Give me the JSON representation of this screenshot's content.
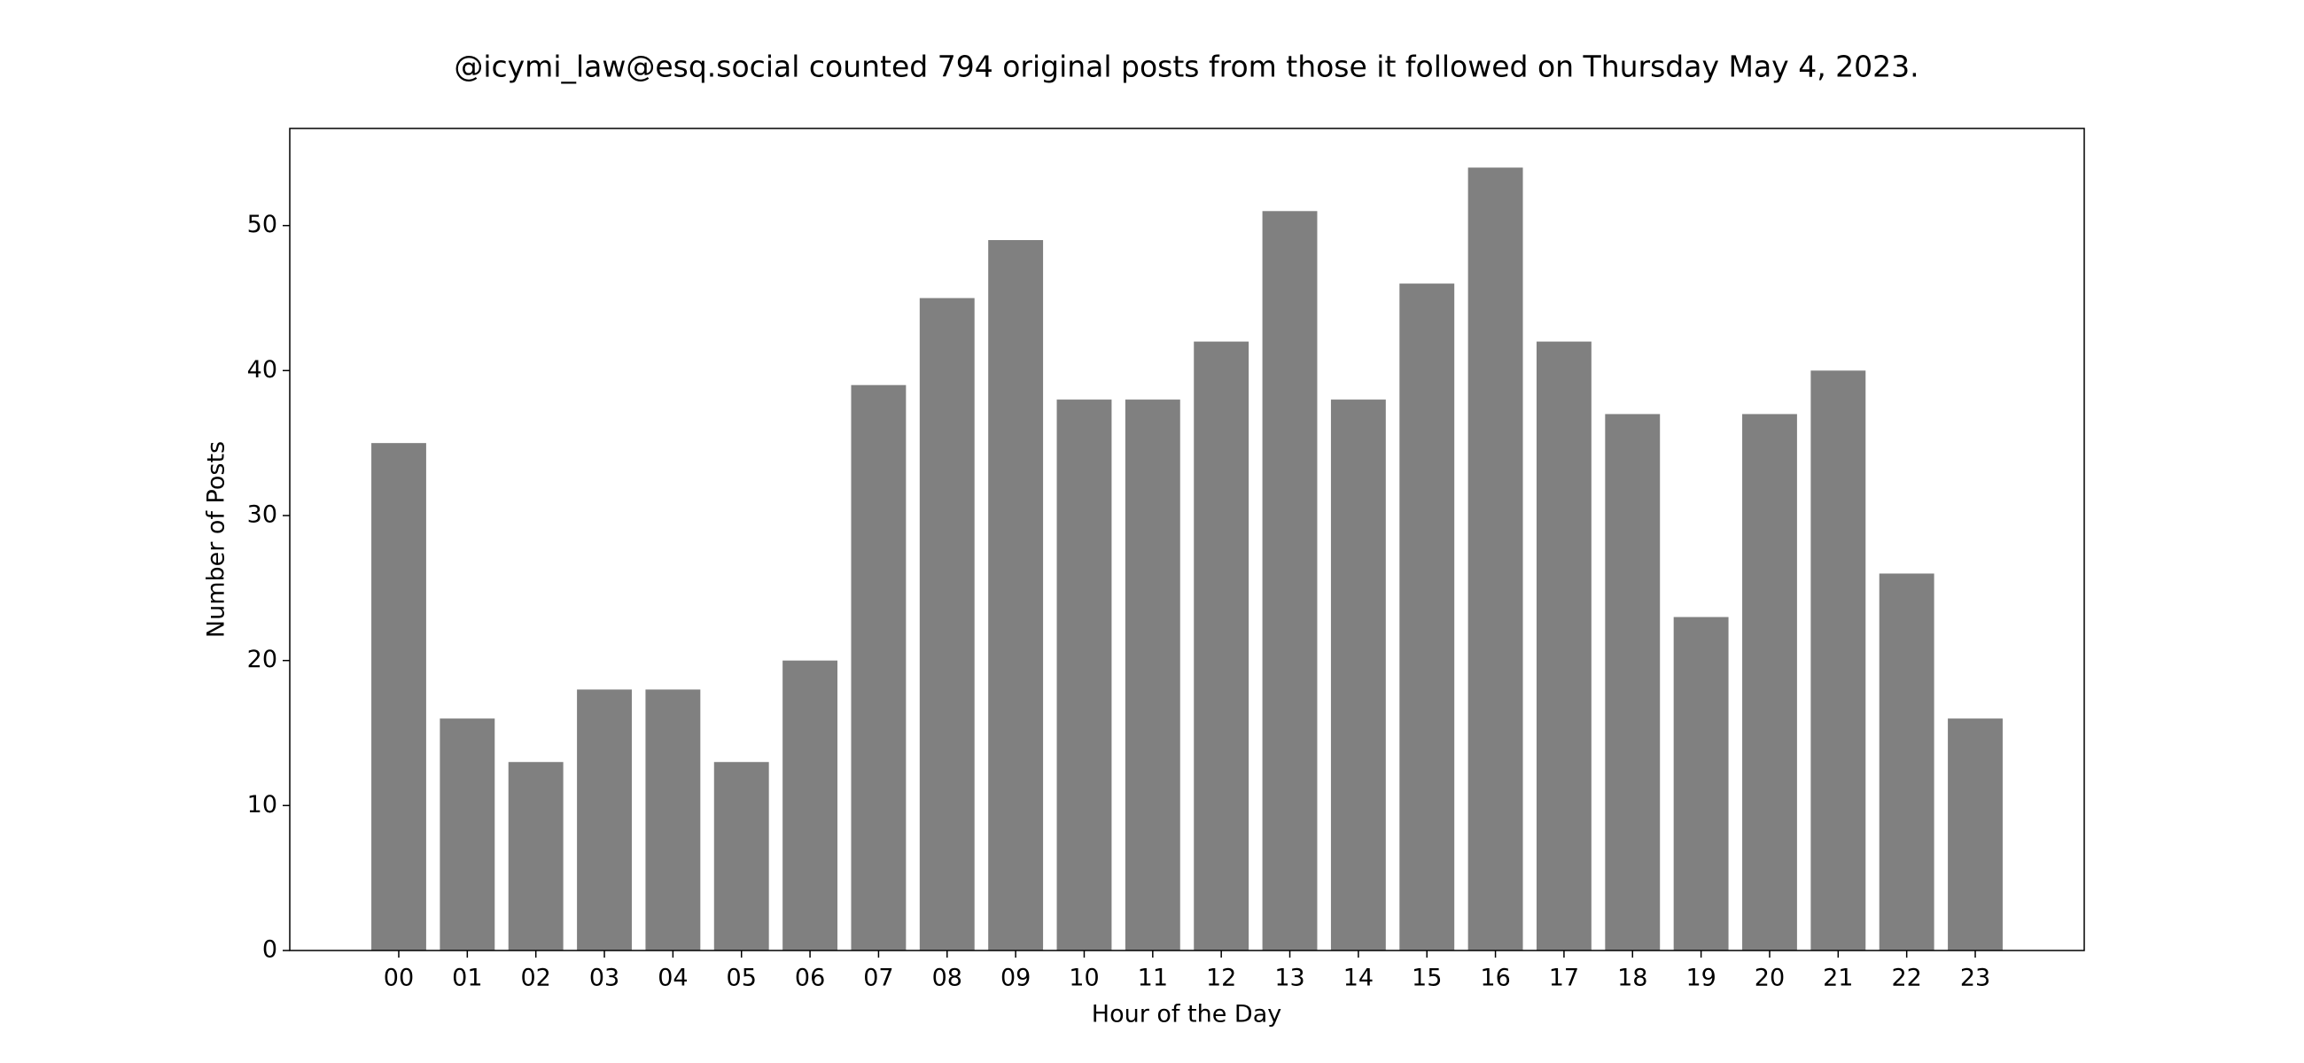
{
  "chart_data": {
    "type": "bar",
    "title": "@icymi_law@esq.social counted 794 original posts from those it followed on Thursday May 4, 2023.",
    "x_label": "Hour of the Day",
    "y_label": "Number of Posts",
    "categories": [
      "00",
      "01",
      "02",
      "03",
      "04",
      "05",
      "06",
      "07",
      "08",
      "09",
      "10",
      "11",
      "12",
      "13",
      "14",
      "15",
      "16",
      "17",
      "18",
      "19",
      "20",
      "21",
      "22",
      "23"
    ],
    "values": [
      35,
      16,
      13,
      18,
      18,
      13,
      20,
      39,
      45,
      49,
      38,
      38,
      42,
      51,
      38,
      46,
      54,
      42,
      37,
      23,
      37,
      40,
      26,
      16
    ],
    "color": "#808080",
    "ylim": [
      0,
      56.7
    ],
    "yticks": [
      0,
      10,
      20,
      30,
      40,
      50
    ],
    "grid": false
  }
}
